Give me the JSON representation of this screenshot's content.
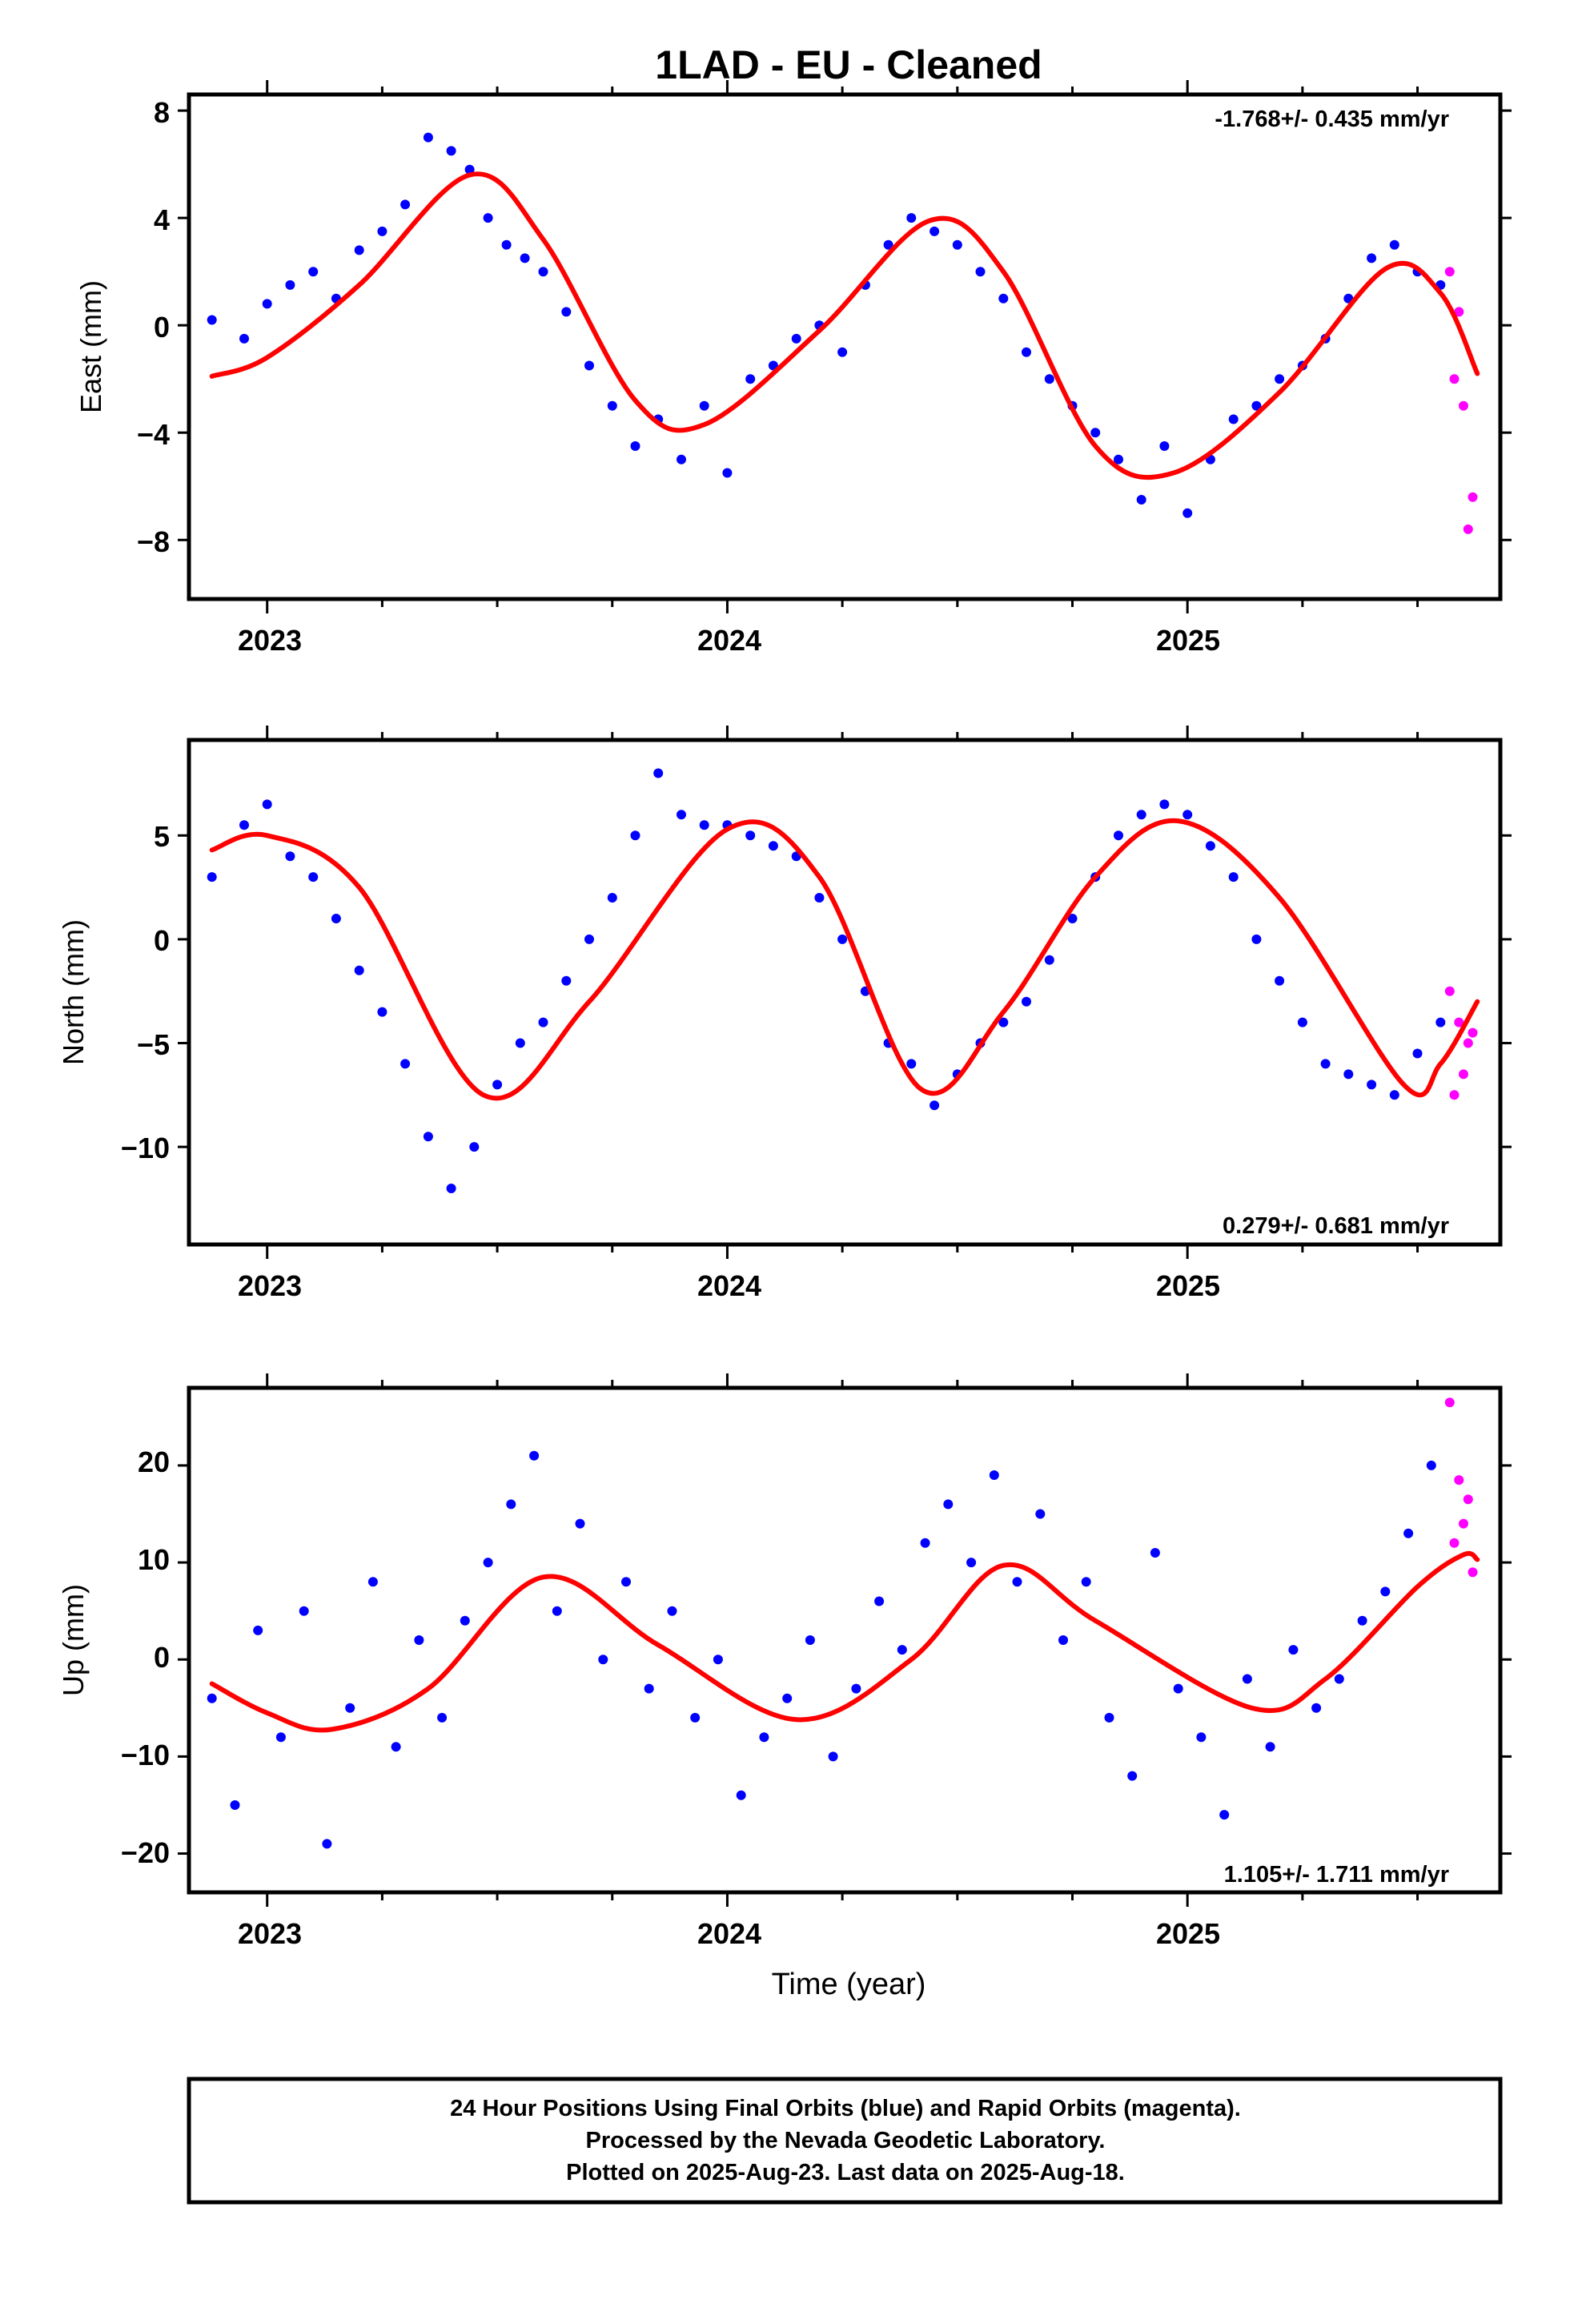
{
  "chart_data": {
    "type": "scatter",
    "title": "1LAD  - EU - Cleaned",
    "xlabel": "Time (year)",
    "xlim": [
      2022.83,
      2025.68
    ],
    "x_ticks": [
      "2023",
      "2024",
      "2025"
    ],
    "colors": {
      "final": "#0000ff",
      "rapid": "#ff00ff",
      "fit": "#ff0000"
    },
    "panels": [
      {
        "id": "east",
        "ylabel": "East (mm)",
        "ylim": [
          -10.2,
          8.6
        ],
        "y_ticks": [
          "8",
          "4",
          "0",
          "−4",
          "−8"
        ],
        "y_tick_values": [
          8,
          4,
          0,
          -4,
          -8
        ],
        "rate": "-1.768+/- 0.435 mm/yr",
        "fit_curve": {
          "x": [
            2022.88,
            2023.0,
            2023.2,
            2023.44,
            2023.6,
            2023.8,
            2023.95,
            2024.2,
            2024.44,
            2024.6,
            2024.8,
            2024.97,
            2025.2,
            2025.43,
            2025.55,
            2025.63
          ],
          "y": [
            -1.9,
            -1.2,
            1.5,
            5.6,
            3.2,
            -2.8,
            -3.7,
            -0.2,
            3.9,
            2.0,
            -4.5,
            -5.5,
            -2.5,
            2.1,
            1.2,
            -1.8
          ]
        },
        "final_points": {
          "x": [
            2022.88,
            2022.95,
            2023.0,
            2023.05,
            2023.1,
            2023.15,
            2023.2,
            2023.25,
            2023.3,
            2023.35,
            2023.4,
            2023.44,
            2023.48,
            2023.52,
            2023.56,
            2023.6,
            2023.65,
            2023.7,
            2023.75,
            2023.8,
            2023.85,
            2023.9,
            2023.95,
            2024.0,
            2024.05,
            2024.1,
            2024.15,
            2024.2,
            2024.25,
            2024.3,
            2024.35,
            2024.4,
            2024.45,
            2024.5,
            2024.55,
            2024.6,
            2024.65,
            2024.7,
            2024.75,
            2024.8,
            2024.85,
            2024.9,
            2024.95,
            2025.0,
            2025.05,
            2025.1,
            2025.15,
            2025.2,
            2025.25,
            2025.3,
            2025.35,
            2025.4,
            2025.45,
            2025.5,
            2025.55
          ],
          "y": [
            0.2,
            -0.5,
            0.8,
            1.5,
            2.0,
            1.0,
            2.8,
            3.5,
            4.5,
            7.0,
            6.5,
            5.8,
            4.0,
            3.0,
            2.5,
            2.0,
            0.5,
            -1.5,
            -3.0,
            -4.5,
            -3.5,
            -5.0,
            -3.0,
            -5.5,
            -2.0,
            -1.5,
            -0.5,
            0.0,
            -1.0,
            1.5,
            3.0,
            4.0,
            3.5,
            3.0,
            2.0,
            1.0,
            -1.0,
            -2.0,
            -3.0,
            -4.0,
            -5.0,
            -6.5,
            -4.5,
            -7.0,
            -5.0,
            -3.5,
            -3.0,
            -2.0,
            -1.5,
            -0.5,
            1.0,
            2.5,
            3.0,
            2.0,
            1.5
          ]
        },
        "rapid_points": {
          "x": [
            2025.57,
            2025.58,
            2025.59,
            2025.6,
            2025.61,
            2025.62
          ],
          "y": [
            2.0,
            -2.0,
            0.5,
            -3.0,
            -7.6,
            -6.4
          ]
        }
      },
      {
        "id": "north",
        "ylabel": "North (mm)",
        "ylim": [
          -14.7,
          9.6
        ],
        "y_ticks": [
          "5",
          "0",
          "−5",
          "−10"
        ],
        "y_tick_values": [
          5,
          0,
          -5,
          -10
        ],
        "rate": "0.279+/- 0.681 mm/yr",
        "fit_curve": {
          "x": [
            2022.88,
            2023.0,
            2023.2,
            2023.47,
            2023.7,
            2024.0,
            2024.2,
            2024.42,
            2024.6,
            2024.8,
            2024.98,
            2025.2,
            2025.47,
            2025.55,
            2025.63
          ],
          "y": [
            4.3,
            5.0,
            2.5,
            -7.5,
            -3.0,
            5.3,
            3.0,
            -7.2,
            -3.5,
            3.0,
            5.7,
            2.0,
            -7.0,
            -6.0,
            -3.0
          ]
        },
        "final_points": {
          "x": [
            2022.88,
            2022.95,
            2023.0,
            2023.05,
            2023.1,
            2023.15,
            2023.2,
            2023.25,
            2023.3,
            2023.35,
            2023.4,
            2023.45,
            2023.5,
            2023.55,
            2023.6,
            2023.65,
            2023.7,
            2023.75,
            2023.8,
            2023.85,
            2023.9,
            2023.95,
            2024.0,
            2024.05,
            2024.1,
            2024.15,
            2024.2,
            2024.25,
            2024.3,
            2024.35,
            2024.4,
            2024.45,
            2024.5,
            2024.55,
            2024.6,
            2024.65,
            2024.7,
            2024.75,
            2024.8,
            2024.85,
            2024.9,
            2024.95,
            2025.0,
            2025.05,
            2025.1,
            2025.15,
            2025.2,
            2025.25,
            2025.3,
            2025.35,
            2025.4,
            2025.45,
            2025.5,
            2025.55
          ],
          "y": [
            3.0,
            5.5,
            6.5,
            4.0,
            3.0,
            1.0,
            -1.5,
            -3.5,
            -6.0,
            -9.5,
            -12.0,
            -10.0,
            -7.0,
            -5.0,
            -4.0,
            -2.0,
            0.0,
            2.0,
            5.0,
            8.0,
            6.0,
            5.5,
            5.5,
            5.0,
            4.5,
            4.0,
            2.0,
            0.0,
            -2.5,
            -5.0,
            -6.0,
            -8.0,
            -6.5,
            -5.0,
            -4.0,
            -3.0,
            -1.0,
            1.0,
            3.0,
            5.0,
            6.0,
            6.5,
            6.0,
            4.5,
            3.0,
            0.0,
            -2.0,
            -4.0,
            -6.0,
            -6.5,
            -7.0,
            -7.5,
            -5.5,
            -4.0
          ]
        },
        "rapid_points": {
          "x": [
            2025.57,
            2025.58,
            2025.59,
            2025.6,
            2025.61,
            2025.62
          ],
          "y": [
            -2.5,
            -7.5,
            -4.0,
            -6.5,
            -5.0,
            -4.5
          ]
        }
      },
      {
        "id": "up",
        "ylabel": "Up (mm)",
        "ylim": [
          -24,
          28
        ],
        "y_ticks": [
          "20",
          "10",
          "0",
          "−10",
          "−20"
        ],
        "y_tick_values": [
          20,
          10,
          0,
          -10,
          -20
        ],
        "rate": "1.105+/- 1.711 mm/yr",
        "fit_curve": {
          "x": [
            2022.88,
            2023.0,
            2023.14,
            2023.35,
            2023.6,
            2023.85,
            2024.15,
            2024.4,
            2024.6,
            2024.8,
            2025.14,
            2025.3,
            2025.5,
            2025.6,
            2025.63
          ],
          "y": [
            -2.5,
            -5.5,
            -7.2,
            -3.0,
            8.5,
            1.5,
            -6.2,
            0.0,
            9.7,
            4.0,
            -5.0,
            -2.0,
            7.5,
            10.8,
            10.3
          ]
        },
        "final_points": {
          "x": [
            2022.88,
            2022.93,
            2022.98,
            2023.03,
            2023.08,
            2023.13,
            2023.18,
            2023.23,
            2023.28,
            2023.33,
            2023.38,
            2023.43,
            2023.48,
            2023.53,
            2023.58,
            2023.63,
            2023.68,
            2023.73,
            2023.78,
            2023.83,
            2023.88,
            2023.93,
            2023.98,
            2024.03,
            2024.08,
            2024.13,
            2024.18,
            2024.23,
            2024.28,
            2024.33,
            2024.38,
            2024.43,
            2024.48,
            2024.53,
            2024.58,
            2024.63,
            2024.68,
            2024.73,
            2024.78,
            2024.83,
            2024.88,
            2024.93,
            2024.98,
            2025.03,
            2025.08,
            2025.13,
            2025.18,
            2025.23,
            2025.28,
            2025.33,
            2025.38,
            2025.43,
            2025.48,
            2025.53
          ],
          "y": [
            -4.0,
            -15.0,
            3.0,
            -8.0,
            5.0,
            -19.0,
            -5.0,
            8.0,
            -9.0,
            2.0,
            -6.0,
            4.0,
            10.0,
            16.0,
            21.0,
            5.0,
            14.0,
            0.0,
            8.0,
            -3.0,
            5.0,
            -6.0,
            0.0,
            -14.0,
            -8.0,
            -4.0,
            2.0,
            -10.0,
            -3.0,
            6.0,
            1.0,
            12.0,
            16.0,
            10.0,
            19.0,
            8.0,
            15.0,
            2.0,
            8.0,
            -6.0,
            -12.0,
            11.0,
            -3.0,
            -8.0,
            -16.0,
            -2.0,
            -9.0,
            1.0,
            -5.0,
            -2.0,
            4.0,
            7.0,
            13.0,
            20.0
          ]
        },
        "rapid_points": {
          "x": [
            2025.57,
            2025.58,
            2025.59,
            2025.6,
            2025.61,
            2025.62
          ],
          "y": [
            26.5,
            12.0,
            18.5,
            14.0,
            16.5,
            9.0
          ]
        }
      }
    ],
    "footer": [
      "24 Hour Positions Using Final Orbits (blue) and Rapid Orbits (magenta).",
      "Processed by the Nevada Geodetic Laboratory.",
      "Plotted on 2025-Aug-23. Last data on 2025-Aug-18."
    ]
  }
}
